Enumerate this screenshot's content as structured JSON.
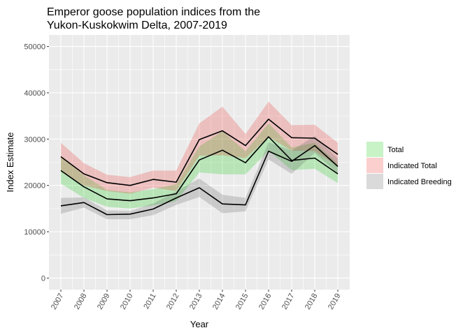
{
  "chart_data": {
    "type": "area",
    "title": "Emperor goose population indices from the\nYukon-Kuskokwim Delta, 2007-2019",
    "xlabel": "Year",
    "ylabel": "Index Estimate",
    "x": [
      2007,
      2008,
      2009,
      2010,
      2011,
      2012,
      2013,
      2014,
      2015,
      2016,
      2017,
      2018,
      2019
    ],
    "x_tick_labels": [
      "2007",
      "2008",
      "2009",
      "2010",
      "2011",
      "2012",
      "2013",
      "2014",
      "2015",
      "2016",
      "2017",
      "2018",
      "2019"
    ],
    "ylim": [
      -2500,
      52500
    ],
    "y_ticks": [
      0,
      10000,
      20000,
      30000,
      40000,
      50000
    ],
    "y_tick_labels": [
      "0",
      "10000",
      "20000",
      "30000",
      "40000",
      "50000"
    ],
    "grid": true,
    "legend_position": "right",
    "series": [
      {
        "name": "Total",
        "color": "#00c800",
        "values": [
          23200,
          19700,
          17100,
          16700,
          17300,
          18200,
          25500,
          27600,
          24900,
          30500,
          25400,
          25900,
          22500
        ],
        "lower": [
          20400,
          17300,
          15400,
          15000,
          15700,
          16600,
          22800,
          22400,
          22400,
          27500,
          23300,
          23600,
          20500
        ],
        "upper": [
          26300,
          22200,
          19000,
          18500,
          19200,
          20300,
          28400,
          31700,
          27400,
          33400,
          28200,
          29200,
          24700
        ]
      },
      {
        "name": "Indicated Total",
        "color": "#e8231e",
        "values": [
          26200,
          22500,
          20600,
          20000,
          21300,
          20700,
          29900,
          31800,
          28600,
          34300,
          30300,
          30200,
          26700
        ],
        "lower": [
          23200,
          20000,
          18800,
          18200,
          19500,
          18800,
          26400,
          26500,
          25900,
          30500,
          27500,
          27400,
          24200
        ],
        "upper": [
          29200,
          24800,
          22300,
          21800,
          23200,
          23200,
          33400,
          37000,
          31100,
          38100,
          33000,
          33100,
          29200
        ]
      },
      {
        "name": "Indicated Breeding",
        "color": "#555555",
        "values": [
          15600,
          16300,
          13700,
          13800,
          14900,
          17300,
          19500,
          16000,
          15800,
          27400,
          25200,
          28600,
          24100
        ],
        "lower": [
          13900,
          15200,
          12700,
          12700,
          13600,
          15800,
          17500,
          14000,
          14400,
          25600,
          22500,
          27000,
          22600
        ],
        "upper": [
          17300,
          17400,
          14600,
          14500,
          16100,
          18700,
          21500,
          18000,
          17300,
          29300,
          27500,
          30700,
          25800
        ]
      }
    ]
  }
}
